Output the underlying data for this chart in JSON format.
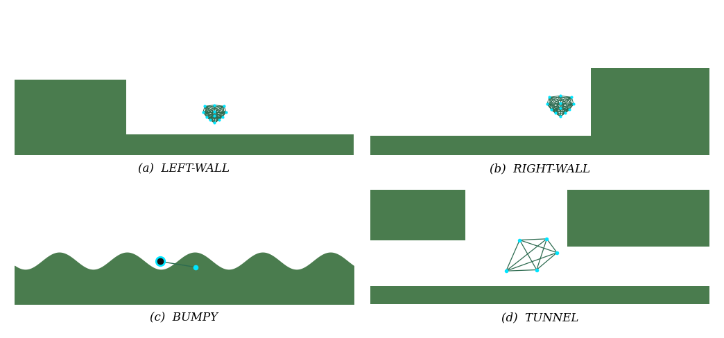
{
  "bg_color": "#f9e4e8",
  "terrain_color": "#4a7c4e",
  "agent_line_color": "#2d6b50",
  "agent_node_color": "#00e5ff",
  "figure_bg": "#ffffff",
  "labels": [
    "(a)  LEFT-WALL",
    "(b)  RIGHT-WALL",
    "(c)  BUMPY",
    "(d)  TUNNEL"
  ],
  "label_fontsize": 12,
  "label_prefix_fontsize": 12
}
